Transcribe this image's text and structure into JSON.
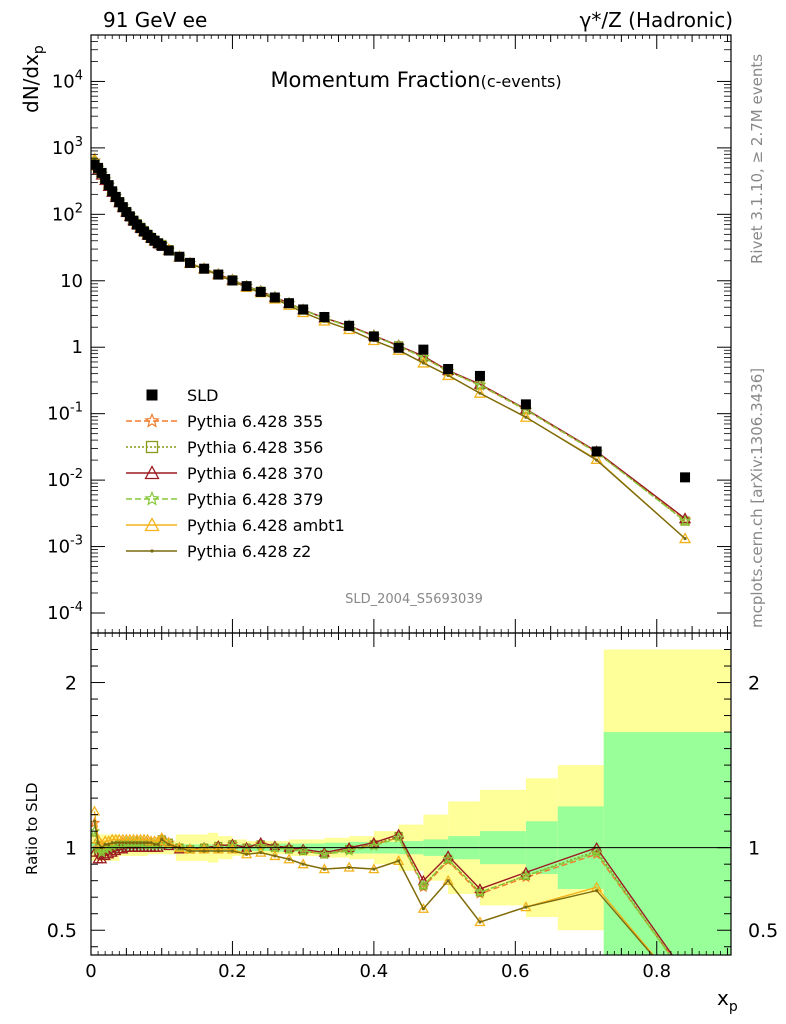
{
  "header": {
    "left": "91 GeV ee",
    "right": "γ*/Z (Hadronic)"
  },
  "side_texts": {
    "rivet": "Rivet 3.1.10, ≥ 2.7M events",
    "mcplots": "mcplots.cern.ch [arXiv:1306.3436]"
  },
  "chart_data": {
    "type": "line",
    "title_main": "Momentum Fraction",
    "title_sub": "(c-events)",
    "analysis_label": "SLD_2004_S5693039",
    "ylabel_main_base": "dN/dx",
    "ylabel_main_sub": "p",
    "ylabel_ratio": "Ratio to SLD",
    "xlabel_base": "x",
    "xlabel_sub": "p",
    "xlim": [
      0,
      0.905
    ],
    "ylim_main": [
      5e-05,
      50000
    ],
    "ylog": true,
    "ylim_ratio": [
      0.35,
      2.3
    ],
    "xticks": [
      "0",
      "0.2",
      "0.4",
      "0.6",
      "0.8"
    ],
    "yticks_main": [
      "10^-4",
      "10^-3",
      "10^-2",
      "10^-1",
      "1",
      "10",
      "10^2",
      "10^3",
      "10^4"
    ],
    "yticks_ratio": [
      "0.5",
      "1",
      "2"
    ],
    "x": [
      0.005,
      0.01,
      0.015,
      0.02,
      0.025,
      0.03,
      0.035,
      0.04,
      0.045,
      0.05,
      0.055,
      0.06,
      0.065,
      0.07,
      0.075,
      0.08,
      0.085,
      0.09,
      0.095,
      0.1,
      0.11,
      0.125,
      0.14,
      0.16,
      0.18,
      0.2,
      0.22,
      0.24,
      0.26,
      0.28,
      0.3,
      0.33,
      0.365,
      0.4,
      0.435,
      0.47,
      0.505,
      0.55,
      0.615,
      0.715,
      0.84
    ],
    "data": {
      "name": "SLD",
      "values": [
        560,
        500,
        420,
        340,
        275,
        222,
        183,
        152,
        128,
        108,
        93,
        80,
        70,
        62,
        55,
        49,
        44,
        40,
        36.5,
        33.5,
        28.5,
        23,
        18.6,
        15.2,
        12.4,
        10.1,
        8.3,
        6.8,
        5.6,
        4.6,
        3.7,
        2.85,
        2.1,
        1.45,
        0.98,
        0.92,
        0.47,
        0.37,
        0.138,
        0.027,
        0.011
      ],
      "band_x": [
        0,
        0.04,
        0.08,
        0.12,
        0.165,
        0.18,
        0.2,
        0.22,
        0.24,
        0.26,
        0.28,
        0.3,
        0.33,
        0.365,
        0.4,
        0.435,
        0.47,
        0.505,
        0.55,
        0.615,
        0.66,
        0.725,
        0.905
      ],
      "stat_rel": [
        0.03,
        0.02,
        0.015,
        0.02,
        0.02,
        0.02,
        0.02,
        0.02,
        0.02,
        0.025,
        0.025,
        0.025,
        0.03,
        0.035,
        0.035,
        0.04,
        0.05,
        0.07,
        0.1,
        0.16,
        0.25,
        0.7,
        0.95
      ],
      "tot_rel": [
        0.08,
        0.05,
        0.04,
        0.08,
        0.09,
        0.07,
        0.05,
        0.04,
        0.04,
        0.04,
        0.05,
        0.05,
        0.06,
        0.07,
        0.1,
        0.14,
        0.2,
        0.28,
        0.35,
        0.42,
        0.5,
        1.2,
        1.5
      ]
    },
    "series": [
      {
        "name": "Pythia 6.428 355",
        "color": "#f07c2c",
        "dash": "6,3",
        "marker": "star",
        "ratio": [
          1.15,
          1.0,
          0.96,
          0.98,
          1.0,
          1.0,
          1.02,
          1.02,
          1.03,
          1.03,
          1.03,
          1.03,
          1.04,
          1.03,
          1.03,
          1.03,
          1.03,
          1.02,
          1.02,
          1.05,
          1.03,
          1.0,
          0.99,
          1.0,
          1.01,
          1.02,
          1.0,
          1.02,
          1.0,
          0.99,
          0.98,
          0.96,
          0.99,
          1.02,
          1.06,
          0.76,
          0.92,
          0.72,
          0.82,
          0.96,
          0.23
        ]
      },
      {
        "name": "Pythia 6.428 356",
        "color": "#8a9a1a",
        "dash": "2,2",
        "marker": "square",
        "ratio": [
          1.05,
          0.97,
          0.96,
          0.98,
          0.99,
          1.0,
          1.01,
          1.02,
          1.02,
          1.02,
          1.02,
          1.02,
          1.03,
          1.03,
          1.03,
          1.02,
          1.02,
          1.02,
          1.02,
          1.05,
          1.03,
          1.0,
          0.99,
          1.0,
          1.01,
          1.02,
          1.0,
          1.02,
          1.0,
          0.99,
          0.98,
          0.96,
          0.99,
          1.02,
          1.07,
          0.77,
          0.93,
          0.73,
          0.83,
          0.98,
          0.22
        ]
      },
      {
        "name": "Pythia 6.428 370",
        "color": "#9b1b22",
        "dash": "",
        "marker": "triangle",
        "ratio": [
          0.97,
          0.93,
          0.93,
          0.95,
          0.96,
          0.97,
          0.98,
          0.99,
          0.99,
          1.0,
          1.0,
          1.0,
          1.0,
          1.0,
          1.0,
          1.0,
          1.0,
          1.0,
          1.0,
          1.02,
          1.01,
          0.99,
          0.99,
          1.0,
          1.01,
          1.02,
          1.0,
          1.03,
          1.01,
          1.0,
          0.99,
          0.97,
          1.0,
          1.03,
          1.08,
          0.8,
          0.95,
          0.75,
          0.85,
          1.0,
          0.24
        ]
      },
      {
        "name": "Pythia 6.428 379",
        "color": "#86c93a",
        "dash": "6,3",
        "marker": "star",
        "ratio": [
          1.1,
          0.99,
          0.97,
          0.99,
          1.0,
          1.01,
          1.02,
          1.02,
          1.02,
          1.03,
          1.03,
          1.03,
          1.03,
          1.03,
          1.02,
          1.02,
          1.02,
          1.02,
          1.02,
          1.04,
          1.02,
          1.0,
          0.99,
          1.0,
          1.0,
          1.01,
          0.99,
          1.01,
          1.0,
          0.99,
          0.98,
          0.96,
          0.98,
          1.01,
          1.06,
          0.77,
          0.93,
          0.73,
          0.83,
          0.97,
          0.22
        ]
      },
      {
        "name": "Pythia 6.428 ambt1",
        "color": "#f3b21a",
        "dash": "",
        "marker": "triangle",
        "ratio": [
          1.22,
          1.05,
          1.02,
          1.04,
          1.04,
          1.05,
          1.05,
          1.05,
          1.05,
          1.05,
          1.05,
          1.05,
          1.05,
          1.05,
          1.05,
          1.05,
          1.04,
          1.04,
          1.04,
          1.06,
          1.03,
          1.0,
          0.99,
          0.99,
          0.99,
          0.99,
          0.96,
          0.97,
          0.95,
          0.93,
          0.9,
          0.87,
          0.88,
          0.87,
          0.92,
          0.63,
          0.8,
          0.55,
          0.64,
          0.76,
          0.12
        ]
      },
      {
        "name": "Pythia 6.428 z2",
        "color": "#7a6a10",
        "dash": "",
        "marker": "dot",
        "ratio": [
          1.16,
          1.03,
          1.0,
          1.02,
          1.02,
          1.03,
          1.03,
          1.03,
          1.03,
          1.03,
          1.03,
          1.03,
          1.03,
          1.03,
          1.03,
          1.03,
          1.03,
          1.02,
          1.02,
          1.05,
          1.02,
          1.0,
          0.98,
          0.98,
          0.98,
          0.98,
          0.96,
          0.97,
          0.95,
          0.93,
          0.9,
          0.87,
          0.88,
          0.87,
          0.92,
          0.63,
          0.8,
          0.55,
          0.64,
          0.74,
          0.12
        ]
      }
    ],
    "colors": {
      "band_total": "#ffff99",
      "band_stat": "#99ff99",
      "data_marker": "#000000",
      "side_text": "#888888"
    },
    "legend_position": "bottom-left"
  }
}
